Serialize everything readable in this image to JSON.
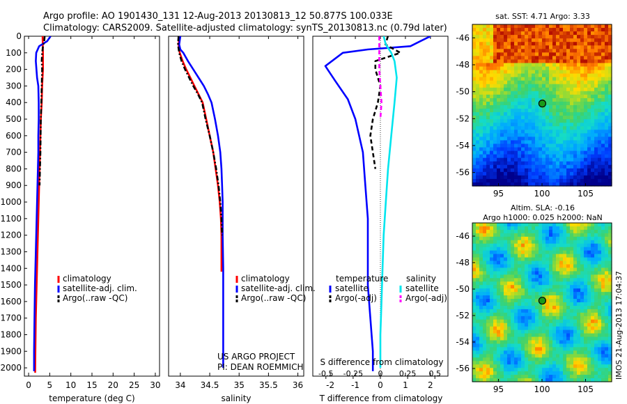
{
  "header": {
    "line1": "Argo profile: AO 1901430_131 12-Aug-2013 20130813_12 50.877S 100.033E",
    "line2": "Climatology: CARS2009. Satellite-adjusted climatology: synTS_20130813.nc (0.79d later)"
  },
  "colors": {
    "climatology": "#ff0000",
    "satellite": "#0000ff",
    "argo": "#000000",
    "sal_satellite": "#00e5ee",
    "sal_argo": "#ff00ff"
  },
  "chart_data": [
    {
      "id": "temperature",
      "type": "line",
      "xlabel": "temperature (deg C)",
      "ylabel": "",
      "xlim": [
        -1,
        31
      ],
      "ylim": [
        2050,
        0
      ],
      "xticks": [
        "0",
        "5",
        "10",
        "15",
        "20",
        "25",
        "30"
      ],
      "xtick_values": [
        0,
        5,
        10,
        15,
        20,
        25,
        30
      ],
      "yticks": [
        "0",
        "100",
        "200",
        "300",
        "400",
        "500",
        "600",
        "700",
        "800",
        "900",
        "1000",
        "1100",
        "1200",
        "1300",
        "1400",
        "1500",
        "1600",
        "1700",
        "1800",
        "1900",
        "2000"
      ],
      "ytick_values": [
        0,
        100,
        200,
        300,
        400,
        500,
        600,
        700,
        800,
        900,
        1000,
        1100,
        1200,
        1300,
        1400,
        1500,
        1600,
        1700,
        1800,
        1900,
        2000
      ],
      "legend": [
        "climatology",
        "satellite-adj. clim.",
        "Argo(..raw -QC)"
      ],
      "series": [
        {
          "name": "climatology",
          "style": "solid",
          "color": "#ff0000",
          "x": [
            3.3,
            3.4,
            3.4,
            3.4,
            3.3,
            3.2,
            3.1,
            2.9,
            2.8,
            2.7,
            2.6,
            2.5,
            2.4,
            2.3,
            2.2,
            2.1,
            2.0,
            1.9,
            1.8,
            1.7,
            1.6,
            1.55
          ],
          "y": [
            0,
            100,
            150,
            200,
            250,
            300,
            400,
            500,
            600,
            700,
            800,
            900,
            1000,
            1100,
            1200,
            1300,
            1400,
            1500,
            1600,
            1700,
            1900,
            2030
          ]
        },
        {
          "name": "satellite-adj. clim.",
          "style": "solid",
          "color": "#0000ff",
          "x": [
            5.2,
            4.4,
            2.5,
            1.8,
            1.7,
            2.0,
            2.3,
            2.4,
            2.4,
            2.3,
            2.3,
            2.2,
            2.1,
            2.0,
            1.9,
            1.8,
            1.7,
            1.6,
            1.5,
            1.4,
            1.3,
            1.3
          ],
          "y": [
            0,
            30,
            60,
            100,
            150,
            250,
            300,
            400,
            500,
            600,
            700,
            800,
            900,
            1000,
            1100,
            1200,
            1300,
            1400,
            1500,
            1700,
            1900,
            2020
          ]
        },
        {
          "name": "Argo(..raw -QC)",
          "style": "dashdot",
          "color": "#000000",
          "x": [
            3.8,
            3.7,
            3.4,
            3.2,
            3.1,
            3.2,
            3.1,
            3.0,
            2.9,
            2.8,
            2.6
          ],
          "y": [
            0,
            30,
            60,
            100,
            150,
            200,
            300,
            400,
            500,
            700,
            900
          ]
        }
      ]
    },
    {
      "id": "salinity",
      "type": "line",
      "xlabel": "salinity",
      "xlim": [
        33.8,
        36.1
      ],
      "ylim": [
        2050,
        0
      ],
      "xticks": [
        "34",
        "34.5",
        "35",
        "35.5",
        "36"
      ],
      "xtick_values": [
        34,
        34.5,
        35,
        35.5,
        36
      ],
      "legend": [
        "climatology",
        "satellite-adj. clim.",
        "Argo(..raw -QC)"
      ],
      "annotation": [
        "US ARGO PROJECT",
        "PI: DEAN ROEMMICH"
      ],
      "series": [
        {
          "name": "climatology",
          "style": "solid",
          "color": "#ff0000",
          "x": [
            33.98,
            33.97,
            33.99,
            34.04,
            34.1,
            34.17,
            34.24,
            34.31,
            34.38,
            34.44,
            34.5,
            34.56,
            34.6,
            34.64,
            34.67,
            34.69,
            34.7,
            34.7
          ],
          "y": [
            0,
            50,
            100,
            150,
            200,
            250,
            300,
            350,
            400,
            500,
            600,
            700,
            800,
            900,
            1000,
            1100,
            1200,
            1420
          ]
        },
        {
          "name": "satellite-adj. clim.",
          "style": "solid",
          "color": "#0000ff",
          "x": [
            34.0,
            33.98,
            34.0,
            34.05,
            34.13,
            34.22,
            34.31,
            34.4,
            34.47,
            34.53,
            34.59,
            34.64,
            34.68,
            34.7,
            34.71,
            34.72,
            34.72,
            34.73,
            34.73,
            34.73
          ],
          "y": [
            0,
            50,
            80,
            100,
            150,
            200,
            250,
            300,
            350,
            400,
            500,
            600,
            700,
            800,
            900,
            1000,
            1200,
            1400,
            1700,
            2000
          ]
        },
        {
          "name": "Argo(..raw -QC)",
          "style": "dashdot",
          "color": "#000000",
          "x": [
            33.97,
            33.96,
            33.98,
            34.02,
            34.08,
            34.15,
            34.22,
            34.3,
            34.37,
            34.43,
            34.5,
            34.56,
            34.61,
            34.65,
            34.68,
            34.7,
            34.71
          ],
          "y": [
            0,
            50,
            100,
            150,
            200,
            250,
            300,
            350,
            400,
            500,
            600,
            700,
            800,
            900,
            1000,
            1100,
            1200
          ]
        }
      ]
    },
    {
      "id": "difference",
      "type": "line",
      "xlabel": "T difference from climatology",
      "toplabel": "S difference from climatology",
      "xlim": [
        -2.7,
        2.7
      ],
      "ylim": [
        2050,
        0
      ],
      "xticks": [
        "-2",
        "-1",
        "0",
        "1",
        "2"
      ],
      "xtick_values": [
        -2,
        -1,
        0,
        1,
        2
      ],
      "sticks": [
        "-0.5",
        "-0.25",
        "0",
        "0.25",
        "0.5"
      ],
      "stick_values": [
        -0.5,
        -0.25,
        0,
        0.25,
        0.5
      ],
      "legend_groups": [
        "temperature",
        "salinity"
      ],
      "legend": [
        "satellite",
        "Argo(-adj)",
        "satellite",
        "Argo(-adj)"
      ],
      "series": [
        {
          "name": "satellite",
          "group": "temperature",
          "style": "solid",
          "color": "#0000ff",
          "x": [
            2.0,
            1.6,
            1.2,
            -0.5,
            -1.5,
            -2.2,
            -1.8,
            -1.3,
            -1.0,
            -0.7,
            -0.6,
            -0.5,
            -0.5,
            -0.5,
            -0.4,
            -0.3,
            -0.3
          ],
          "y": [
            0,
            30,
            60,
            80,
            100,
            180,
            270,
            380,
            500,
            700,
            900,
            1100,
            1300,
            1500,
            1700,
            1900,
            2020
          ]
        },
        {
          "name": "Argo(-adj)",
          "group": "temperature",
          "style": "dashed",
          "color": "#000000",
          "x": [
            0.3,
            0.2,
            0.8,
            -0.2,
            -0.2,
            0.0,
            -0.1,
            -0.3,
            -0.4,
            -0.3,
            -0.2
          ],
          "y": [
            0,
            50,
            100,
            150,
            200,
            300,
            400,
            500,
            600,
            700,
            800
          ]
        },
        {
          "name": "satellite",
          "group": "salinity",
          "style": "solid",
          "color": "#00e5ee",
          "x": [
            0.03,
            0.05,
            0.1,
            0.13,
            0.15,
            0.13,
            0.1,
            0.07,
            0.05,
            0.03,
            0.02,
            0.01,
            0.0,
            0.0
          ],
          "y": [
            0,
            50,
            100,
            150,
            250,
            400,
            600,
            800,
            1000,
            1200,
            1400,
            1600,
            1800,
            2000
          ]
        },
        {
          "name": "Argo(-adj)",
          "group": "salinity",
          "style": "dashed",
          "color": "#ff00ff",
          "x": [
            -0.01,
            -0.01,
            -0.01,
            0.0,
            0.01,
            0.0
          ],
          "y": [
            0,
            100,
            200,
            300,
            400,
            500
          ]
        }
      ]
    }
  ],
  "maps": {
    "sst": {
      "title": "sat. SST: 4.71  Argo: 3.33",
      "xticks": [
        "95",
        "100",
        "105"
      ],
      "yticks": [
        "-46",
        "-48",
        "-50",
        "-52",
        "-54",
        "-56"
      ]
    },
    "sla": {
      "title1": "Altim. SLA: -0.16",
      "title2": "Argo h1000: 0.025 h2000: NaN",
      "xticks": [
        "95",
        "100",
        "105"
      ],
      "yticks": [
        "-46",
        "-48",
        "-50",
        "-52",
        "-54",
        "-56"
      ]
    },
    "lon_range": [
      92,
      108
    ],
    "lat_range": [
      -57,
      -45
    ],
    "marker": {
      "lon": 100.033,
      "lat": -50.877
    },
    "stamp": "IMOS 21-Aug-2013 17:04:37"
  }
}
